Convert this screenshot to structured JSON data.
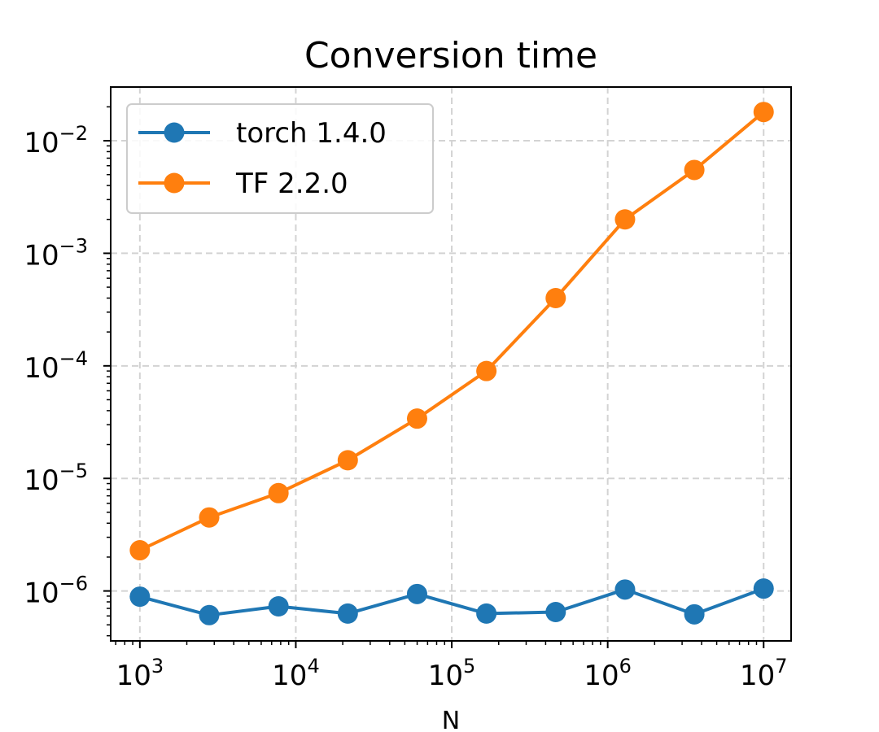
{
  "chart_data": {
    "type": "line",
    "title": "Conversion time",
    "xlabel": "N",
    "ylabel": "",
    "xscale": "log",
    "yscale": "log",
    "xlim": [
      650,
      15000000
    ],
    "ylim": [
      3.6e-07,
      0.03
    ],
    "grid": true,
    "legend_position": "top-left",
    "x": [
      1000,
      2783,
      7743,
      21544,
      59948,
      166810,
      464159,
      1291550,
      3593814,
      10000000
    ],
    "series": [
      {
        "name": "torch 1.4.0",
        "color": "#1f77b4",
        "values": [
          8.9e-07,
          6.1e-07,
          7.3e-07,
          6.3e-07,
          9.4e-07,
          6.3e-07,
          6.5e-07,
          1.03e-06,
          6.2e-07,
          1.05e-06
        ]
      },
      {
        "name": "TF 2.2.0",
        "color": "#ff7f0e",
        "values": [
          2.3e-06,
          4.5e-06,
          7.4e-06,
          1.45e-05,
          3.4e-05,
          9e-05,
          0.0004,
          0.002,
          0.0055,
          0.018
        ]
      }
    ],
    "x_ticks": [
      {
        "base": "10",
        "exp": "3",
        "value": 1000
      },
      {
        "base": "10",
        "exp": "4",
        "value": 10000
      },
      {
        "base": "10",
        "exp": "5",
        "value": 100000
      },
      {
        "base": "10",
        "exp": "6",
        "value": 1000000
      },
      {
        "base": "10",
        "exp": "7",
        "value": 10000000
      }
    ],
    "y_ticks": [
      {
        "base": "10",
        "exp": "−6",
        "value": 1e-06
      },
      {
        "base": "10",
        "exp": "−5",
        "value": 1e-05
      },
      {
        "base": "10",
        "exp": "−4",
        "value": 0.0001
      },
      {
        "base": "10",
        "exp": "−3",
        "value": 0.001
      },
      {
        "base": "10",
        "exp": "−2",
        "value": 0.01
      }
    ]
  }
}
